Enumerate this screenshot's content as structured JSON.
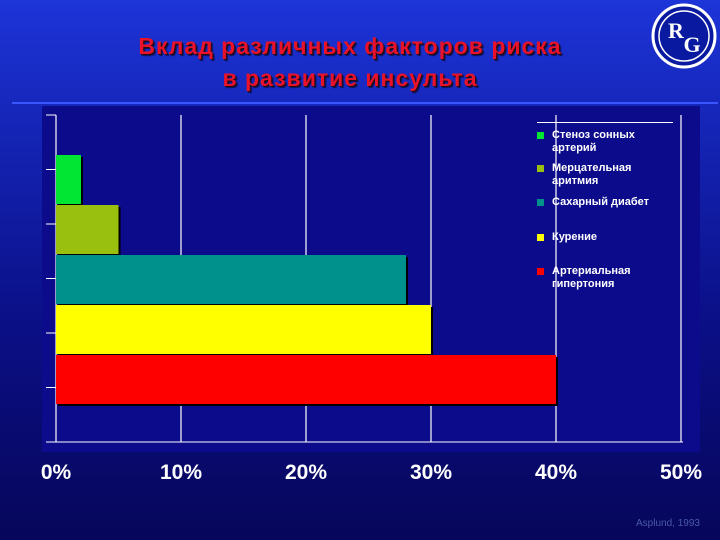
{
  "title": {
    "line1": "Вклад различных факторов риска",
    "line2": "в развитие инсульта"
  },
  "logo_text": "RG",
  "colors": {
    "background": "#1424b4",
    "title": "#e8122a",
    "grid": "#ffffff"
  },
  "chart_data": {
    "type": "bar",
    "orientation": "horizontal",
    "title": "Вклад различных факторов риска в развитие инсульта",
    "categories": [
      "Стеноз сонных артерий",
      "Мерцательная аритмия",
      "Сахарный диабет",
      "Курение",
      "Артериальная гипертония"
    ],
    "values": [
      2,
      5,
      28,
      30,
      40
    ],
    "colors": [
      "#00e632",
      "#99c00f",
      "#00918c",
      "#ffff00",
      "#ff0000"
    ],
    "xlim": [
      0,
      50
    ],
    "x_ticks": [
      "0%",
      "10%",
      "20%",
      "30%",
      "40%",
      "50%"
    ],
    "x_tick_values": [
      0,
      10,
      20,
      30,
      40,
      50
    ],
    "xlabel": "",
    "ylabel": "",
    "grid": "vertical",
    "legend_position": "top-right"
  },
  "source": "Asplund, 1993"
}
